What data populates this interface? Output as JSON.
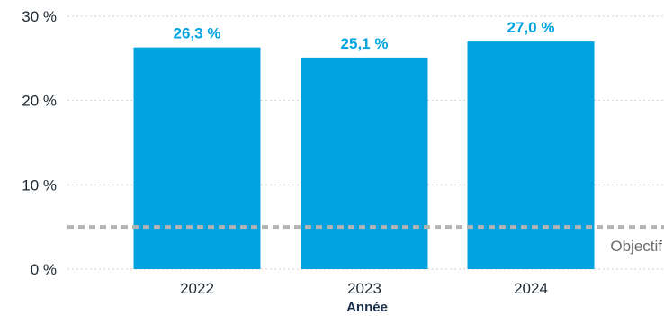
{
  "chart_data": {
    "type": "bar",
    "categories": [
      "2022",
      "2023",
      "2024"
    ],
    "values": [
      26.3,
      25.1,
      27.0
    ],
    "value_labels": [
      "26,3 %",
      "25,1 %",
      "27,0 %"
    ],
    "title": "",
    "xlabel": "Année",
    "ylabel": "",
    "ylim": [
      0,
      30
    ],
    "yticks": [
      0,
      10,
      20,
      30
    ],
    "ytick_labels": [
      "0 %",
      "10 %",
      "20 %",
      "30 %"
    ],
    "grid": true,
    "reference_line": {
      "label": "Objectif",
      "value": 5
    },
    "colors": {
      "bar": "#00a3e0",
      "value_label": "#00a3e0",
      "reference_line": "#b3b3b3",
      "grid": "#d0d0d0"
    }
  }
}
